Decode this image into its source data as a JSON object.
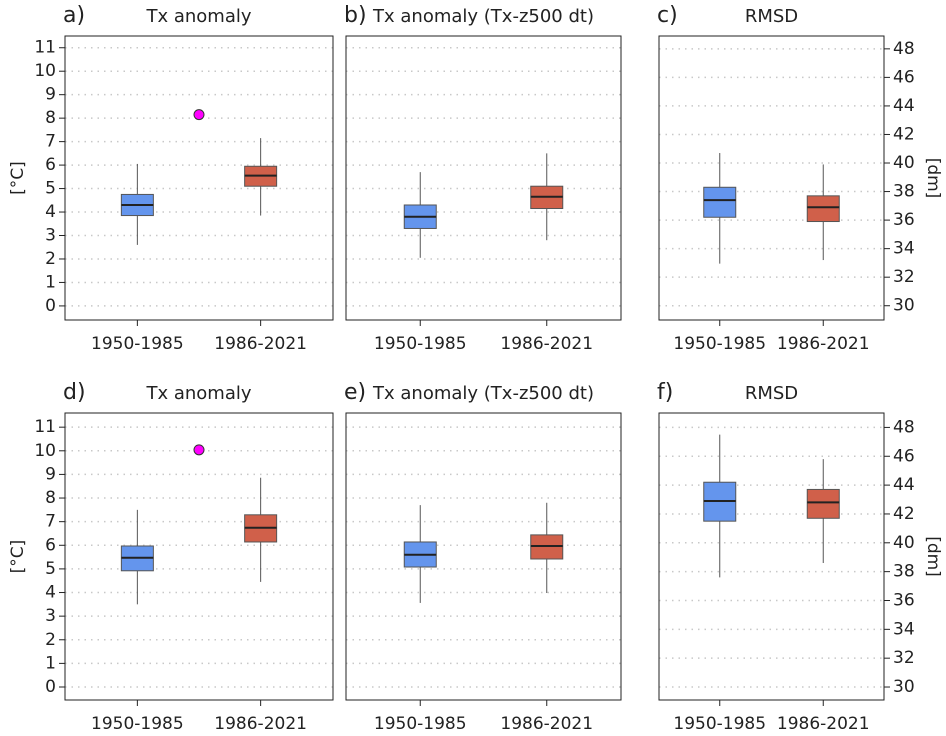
{
  "chart_data": [
    {
      "type": "box",
      "label": "a)",
      "title": "Tx anomaly",
      "ylabel": "[°C]",
      "categories": [
        "1950-1985",
        "1986-2021"
      ],
      "boxes": [
        {
          "color": "#6495ed",
          "whislo": 2.6,
          "q1": 3.85,
          "med": 4.3,
          "q3": 4.75,
          "whishi": 6.05
        },
        {
          "color": "#d0604a",
          "whislo": 3.85,
          "q1": 5.1,
          "med": 5.55,
          "q3": 5.95,
          "whishi": 7.15
        }
      ],
      "marker": {
        "value": 8.15,
        "color": "#ff00ff"
      },
      "ylim": [
        -0.6,
        11.5
      ],
      "yticks": [
        0,
        1,
        2,
        3,
        4,
        5,
        6,
        7,
        8,
        9,
        10,
        11
      ],
      "ytick_side": "left",
      "show_yticklabels": true,
      "grid": true
    },
    {
      "type": "box",
      "label": "b)",
      "title": "Tx anomaly (Tx-z500 dt)",
      "categories": [
        "1950-1985",
        "1986-2021"
      ],
      "boxes": [
        {
          "color": "#6495ed",
          "whislo": 2.05,
          "q1": 3.3,
          "med": 3.8,
          "q3": 4.3,
          "whishi": 5.7
        },
        {
          "color": "#d0604a",
          "whislo": 2.8,
          "q1": 4.15,
          "med": 4.65,
          "q3": 5.1,
          "whishi": 6.5
        }
      ],
      "ylim": [
        -0.6,
        11.5
      ],
      "yticks": [
        0,
        1,
        2,
        3,
        4,
        5,
        6,
        7,
        8,
        9,
        10,
        11
      ],
      "ytick_side": "left",
      "show_yticklabels": false,
      "grid": true
    },
    {
      "type": "box",
      "label": "c)",
      "title": "RMSD",
      "ylabel": "[dm]",
      "categories": [
        "1950-1985",
        "1986-2021"
      ],
      "boxes": [
        {
          "color": "#6495ed",
          "whislo": 32.95,
          "q1": 36.2,
          "med": 37.4,
          "q3": 38.3,
          "whishi": 40.7
        },
        {
          "color": "#d0604a",
          "whislo": 33.2,
          "q1": 35.9,
          "med": 36.9,
          "q3": 37.7,
          "whishi": 39.9
        }
      ],
      "ylim": [
        29,
        48.9
      ],
      "yticks": [
        30,
        32,
        34,
        36,
        38,
        40,
        42,
        44,
        46,
        48
      ],
      "ytick_side": "right",
      "show_yticklabels": true,
      "grid": true
    },
    {
      "type": "box",
      "label": "d)",
      "title": "Tx anomaly",
      "ylabel": "[°C]",
      "categories": [
        "1950-1985",
        "1986-2021"
      ],
      "boxes": [
        {
          "color": "#6495ed",
          "whislo": 3.5,
          "q1": 4.92,
          "med": 5.47,
          "q3": 5.97,
          "whishi": 7.5
        },
        {
          "color": "#d0604a",
          "whislo": 4.45,
          "q1": 6.14,
          "med": 6.74,
          "q3": 7.29,
          "whishi": 8.86
        }
      ],
      "marker": {
        "value": 10.04,
        "color": "#ff00ff"
      },
      "ylim": [
        -0.55,
        11.6
      ],
      "yticks": [
        0,
        1,
        2,
        3,
        4,
        5,
        6,
        7,
        8,
        9,
        10,
        11
      ],
      "ytick_side": "left",
      "show_yticklabels": true,
      "grid": true
    },
    {
      "type": "box",
      "label": "e)",
      "title": "Tx anomaly (Tx-z500 dt)",
      "categories": [
        "1950-1985",
        "1986-2021"
      ],
      "boxes": [
        {
          "color": "#6495ed",
          "whislo": 3.56,
          "q1": 5.08,
          "med": 5.6,
          "q3": 6.14,
          "whishi": 7.7
        },
        {
          "color": "#d0604a",
          "whislo": 3.98,
          "q1": 5.42,
          "med": 5.97,
          "q3": 6.44,
          "whishi": 7.8
        }
      ],
      "ylim": [
        -0.55,
        11.6
      ],
      "yticks": [
        0,
        1,
        2,
        3,
        4,
        5,
        6,
        7,
        8,
        9,
        10,
        11
      ],
      "ytick_side": "left",
      "show_yticklabels": false,
      "grid": true
    },
    {
      "type": "box",
      "label": "f)",
      "title": "RMSD",
      "ylabel": "[dm]",
      "categories": [
        "1950-1985",
        "1986-2021"
      ],
      "boxes": [
        {
          "color": "#6495ed",
          "whislo": 37.6,
          "q1": 41.5,
          "med": 42.9,
          "q3": 44.2,
          "whishi": 47.5
        },
        {
          "color": "#d0604a",
          "whislo": 38.6,
          "q1": 41.7,
          "med": 42.8,
          "q3": 43.7,
          "whishi": 45.8
        }
      ],
      "ylim": [
        29.1,
        49.0
      ],
      "yticks": [
        30,
        32,
        34,
        36,
        38,
        40,
        42,
        44,
        46,
        48
      ],
      "ytick_side": "right",
      "show_yticklabels": true,
      "grid": true
    }
  ]
}
